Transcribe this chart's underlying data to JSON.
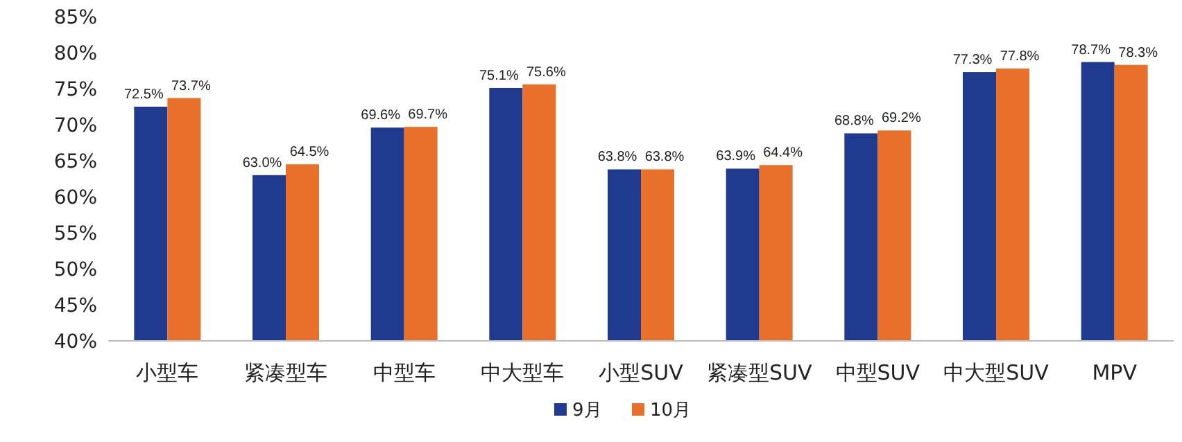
{
  "chart_data": {
    "type": "bar",
    "categories": [
      "小型车",
      "紧凑型车",
      "中型车",
      "中大型车",
      "小型SUV",
      "紧凑型SUV",
      "中型SUV",
      "中大型SUV",
      "MPV"
    ],
    "series": [
      {
        "name": "9月",
        "color": "#1f3a8f",
        "values": [
          72.5,
          63.0,
          69.6,
          75.1,
          63.8,
          63.9,
          68.8,
          77.3,
          78.7
        ],
        "value_labels": [
          "72.5%",
          "63.0%",
          "69.6%",
          "75.1%",
          "63.8%",
          "63.9%",
          "68.8%",
          "77.3%",
          "78.7%"
        ]
      },
      {
        "name": "10月",
        "color": "#e8702a",
        "values": [
          73.7,
          64.5,
          69.7,
          75.6,
          63.8,
          64.4,
          69.2,
          77.8,
          78.3
        ],
        "value_labels": [
          "73.7%",
          "64.5%",
          "69.7%",
          "75.6%",
          "63.8%",
          "64.4%",
          "69.2%",
          "77.8%",
          "78.3%"
        ]
      }
    ],
    "ylim": [
      40,
      85
    ],
    "yticks": [
      {
        "value": 40,
        "label": "40%"
      },
      {
        "value": 45,
        "label": "45%"
      },
      {
        "value": 50,
        "label": "50%"
      },
      {
        "value": 55,
        "label": "55%"
      },
      {
        "value": 60,
        "label": "60%"
      },
      {
        "value": 65,
        "label": "65%"
      },
      {
        "value": 70,
        "label": "70%"
      },
      {
        "value": 75,
        "label": "75%"
      },
      {
        "value": 80,
        "label": "80%"
      },
      {
        "value": 85,
        "label": "85%"
      }
    ],
    "grid": false,
    "legend": "bottom"
  }
}
